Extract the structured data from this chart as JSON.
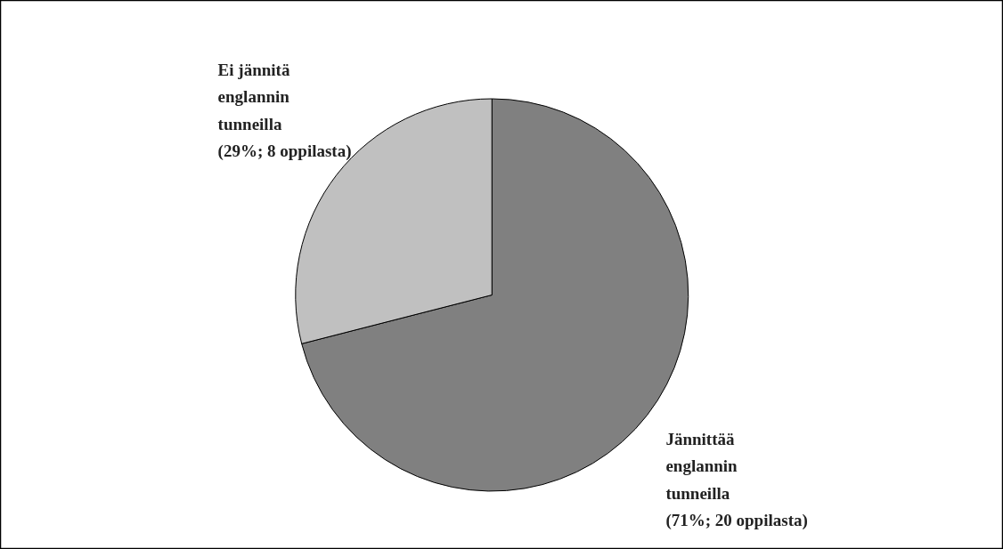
{
  "chart_data": {
    "type": "pie",
    "categories": [
      "Jännittää englannin tunneilla",
      "Ei jännitä englannin tunneilla"
    ],
    "values": [
      71,
      29
    ],
    "value_labels": [
      "(71%; 20 oppilasta)",
      "(29%; 8 oppilasta)"
    ],
    "colors": [
      "#808080",
      "#c0c0c0"
    ],
    "legend": false
  }
}
